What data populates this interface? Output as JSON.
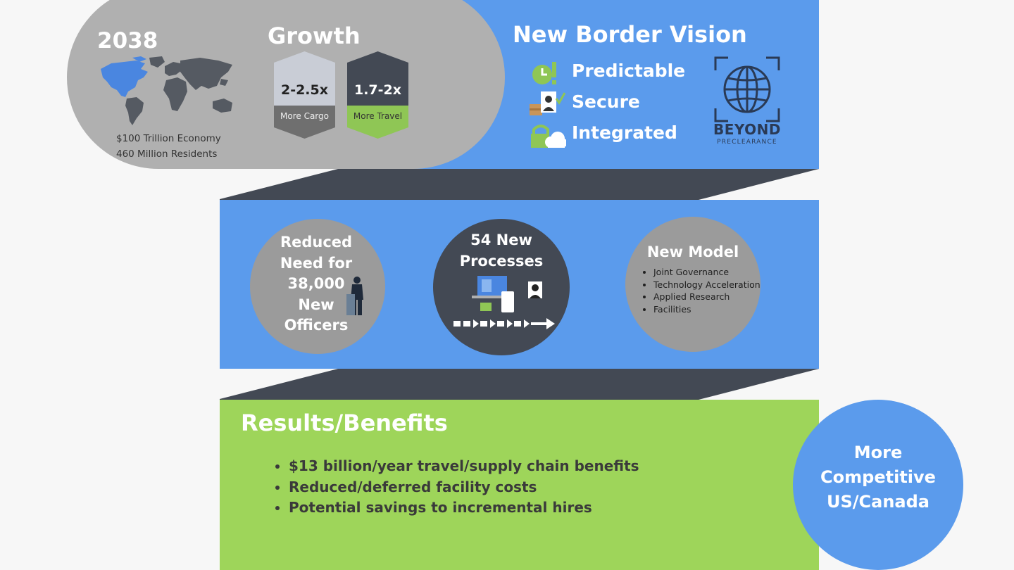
{
  "top": {
    "year": "2038",
    "economy": "$100 Trillion Economy",
    "residents": "460 Million Residents",
    "growth_title": "Growth",
    "growth_items": [
      {
        "value": "2-2.5x",
        "label": "More Cargo",
        "label_bg": "#6f6f6f",
        "top_bg": "#c9cdd6"
      },
      {
        "value": "1.7-2x",
        "label": "More Travel",
        "label_bg": "#8fc655",
        "top_bg": "#434954"
      }
    ],
    "vision_title": "New Border Vision",
    "vision_items": [
      "Predictable",
      "Secure",
      "Integrated"
    ],
    "logo": {
      "line1": "BEYOND",
      "line2": "PRECLEARANCE"
    }
  },
  "middle": {
    "officers": [
      "Reduced",
      "Need for",
      "38,000",
      "New",
      "Officers"
    ],
    "processes": [
      "54 New",
      "Processes"
    ],
    "model_title": "New Model",
    "model_items": [
      "Joint Governance",
      "Technology Acceleration",
      "Applied Research",
      "Facilities"
    ]
  },
  "bottom": {
    "title": "Results/Benefits",
    "benefits": [
      "$13 billion/year travel/supply chain benefits",
      "Reduced/deferred facility costs",
      "Potential savings to incremental hires"
    ],
    "competitive": [
      "More",
      "Competitive",
      "US/Canada"
    ]
  },
  "colors": {
    "blue": "#5b9bec",
    "grey": "#b0b0b0",
    "dark": "#434954",
    "green": "#9ed55a",
    "highlight_blue": "#4a86e0"
  },
  "icons": [
    "world-map-icon",
    "clock-icon",
    "id-check-icon",
    "lock-cloud-icon",
    "globe-icon",
    "officer-icon",
    "laptop-icon",
    "arrows-icon"
  ]
}
